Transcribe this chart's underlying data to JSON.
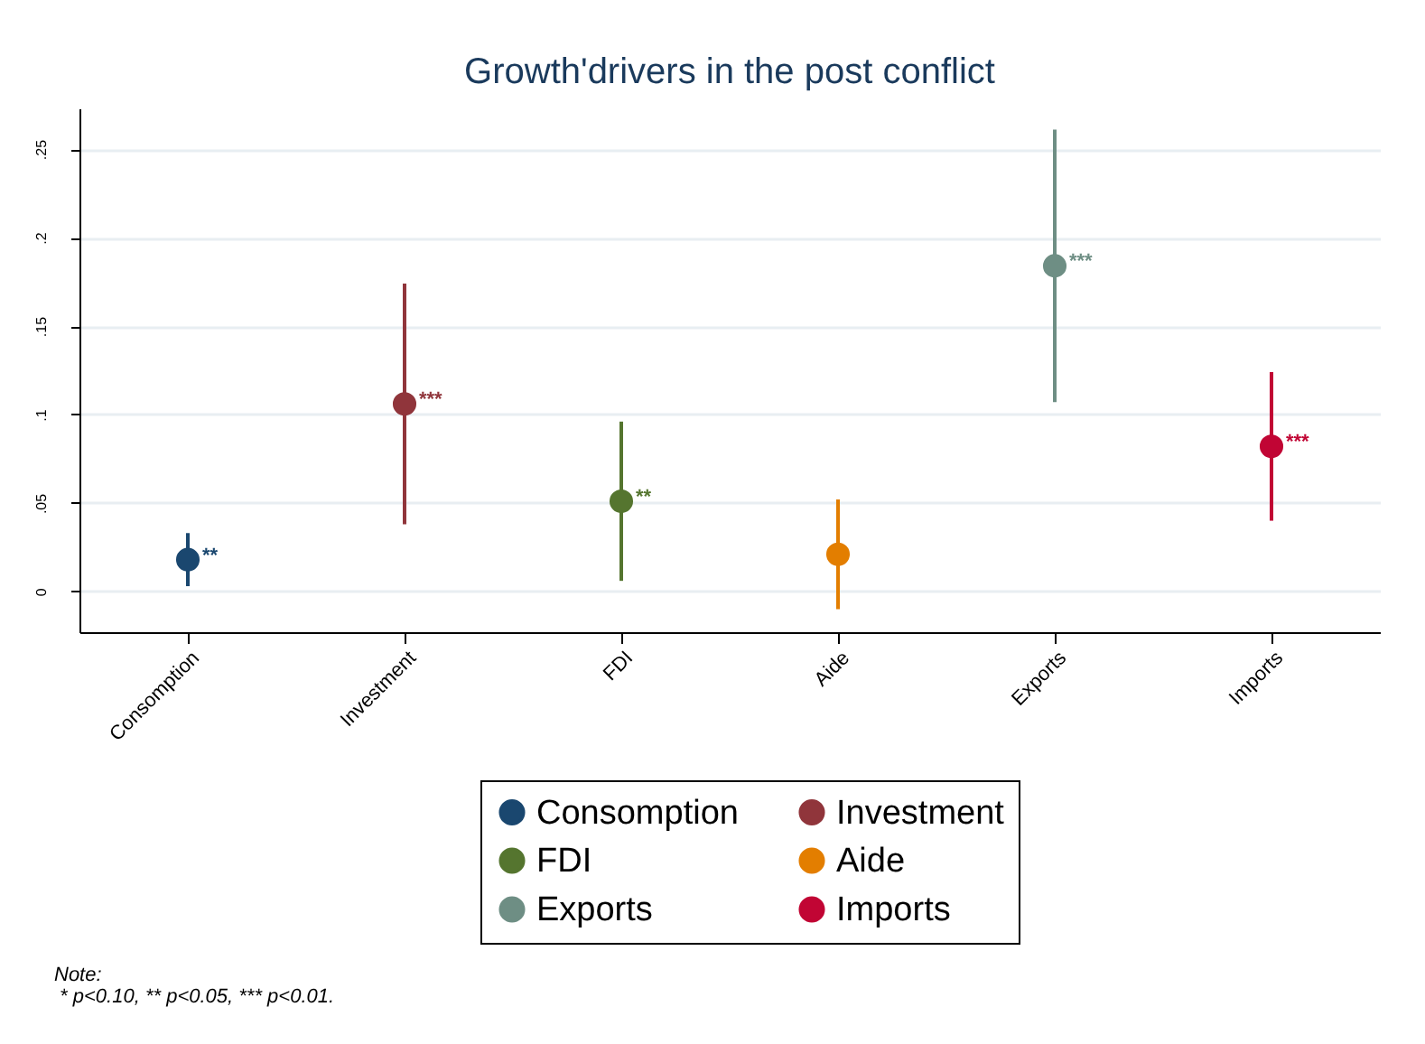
{
  "chart_data": {
    "type": "scatter",
    "title": "Growth'drivers in the post conflict",
    "categories": [
      "Consomption",
      "Investment",
      "FDI",
      "Aide",
      "Exports",
      "Imports"
    ],
    "series": [
      {
        "name": "Consomption",
        "color": "#1a476f",
        "values": [
          0.018,
          null,
          null,
          null,
          null,
          null
        ],
        "errors": [
          [
            0.003,
            0.033
          ],
          null,
          null,
          null,
          null,
          null
        ],
        "value_labels": [
          "**",
          null,
          null,
          null,
          null,
          null
        ]
      },
      {
        "name": "Investment",
        "color": "#90353b",
        "values": [
          null,
          0.106,
          null,
          null,
          null,
          null
        ],
        "errors": [
          null,
          [
            0.038,
            0.174
          ],
          null,
          null,
          null,
          null
        ],
        "value_labels": [
          null,
          "***",
          null,
          null,
          null,
          null
        ]
      },
      {
        "name": "FDI",
        "color": "#55752f",
        "values": [
          null,
          null,
          0.051,
          null,
          null,
          null
        ],
        "errors": [
          null,
          null,
          [
            0.006,
            0.096
          ],
          null,
          null,
          null
        ],
        "value_labels": [
          null,
          null,
          "**",
          null,
          null,
          null
        ]
      },
      {
        "name": "Aide",
        "color": "#e37e00",
        "values": [
          null,
          null,
          null,
          0.021,
          null,
          null
        ],
        "errors": [
          null,
          null,
          null,
          [
            -0.01,
            0.052
          ],
          null,
          null
        ]
      },
      {
        "name": "Exports",
        "color": "#6e8e84",
        "values": [
          null,
          null,
          null,
          null,
          0.184,
          null
        ],
        "errors": [
          null,
          null,
          null,
          null,
          [
            0.107,
            0.261
          ],
          null
        ],
        "value_labels": [
          null,
          null,
          null,
          null,
          "***",
          null
        ]
      },
      {
        "name": "Imports",
        "color": "#c10534",
        "values": [
          null,
          null,
          null,
          null,
          null,
          0.082
        ],
        "errors": [
          null,
          null,
          null,
          null,
          null,
          [
            0.04,
            0.124
          ]
        ],
        "value_labels": [
          null,
          null,
          null,
          null,
          null,
          "***"
        ]
      }
    ],
    "ylim": [
      -0.023,
      0.273
    ],
    "yticks": [
      "0",
      {
        "value": 0.05,
        "label": ".05"
      },
      {
        "value": 0.1,
        "label": ".1"
      },
      {
        "value": 0.15,
        "label": ".15"
      },
      {
        "value": 0.2,
        "label": ".2"
      },
      {
        "value": 0.25,
        "label": ".25"
      }
    ],
    "grid": "y",
    "legend": "bottom",
    "marker": "circle",
    "annotations": [
      "Note:",
      " * p<0.10, ** p<0.05, *** p<0.01."
    ]
  }
}
